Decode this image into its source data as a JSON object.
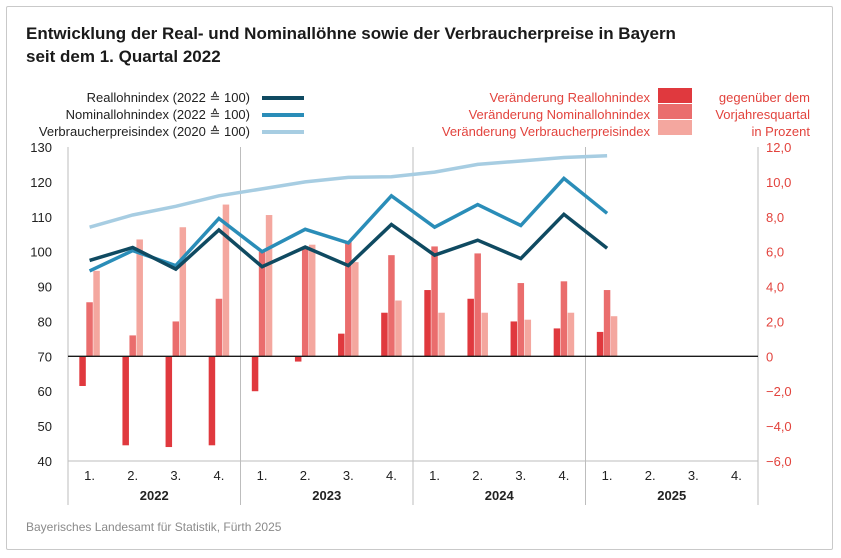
{
  "title_line1": "Entwicklung der Real- und Nominallöhne sowie der Verbraucherpreise in Bayern",
  "title_line2": "seit dem 1. Quartal 2022",
  "source": "Bayerisches Landesamt für Statistik, Fürth 2025",
  "colors": {
    "reallohn_line": "#0f4a61",
    "nominallohn_line": "#2a8db8",
    "vpi_line": "#a7cde2",
    "reallohn_bar": "#e0393e",
    "nominallohn_bar": "#ea6d6d",
    "vpi_bar": "#f4a79f",
    "legend_text_red": "#e2433d",
    "axis_left_text": "#222222",
    "axis_right_text": "#e2433d"
  },
  "chart_data": {
    "type": "bar+line",
    "categories": [
      "1.",
      "2.",
      "3.",
      "4.",
      "1.",
      "2.",
      "3.",
      "4.",
      "1.",
      "2.",
      "3.",
      "4.",
      "1.",
      "2.",
      "3.",
      "4."
    ],
    "years": [
      "2022",
      "2023",
      "2024",
      "2025"
    ],
    "left_axis": {
      "ylim": [
        40,
        130
      ],
      "ticks": [
        "130",
        "120",
        "110",
        "100",
        "90",
        "80",
        "70",
        "60",
        "50",
        "40"
      ]
    },
    "right_axis": {
      "ylim": [
        -6,
        12
      ],
      "ticks": [
        "12,0",
        "10,0",
        "8,0",
        "6,0",
        "4,0",
        "2,0",
        "0",
        "−2,0",
        "−4,0",
        "−6,0"
      ]
    },
    "line_series": [
      {
        "name": "Reallohnindex (2022 ≙ 100)",
        "values": [
          97.5,
          101.2,
          95.0,
          106.2,
          95.7,
          101.3,
          96.0,
          107.8,
          99.0,
          103.3,
          98.0,
          110.7,
          101.0,
          null,
          null,
          null
        ]
      },
      {
        "name": "Nominallohnindex (2022 ≙ 100)",
        "values": [
          94.5,
          100.3,
          96.0,
          109.5,
          100.0,
          106.4,
          102.5,
          116.0,
          107.0,
          113.5,
          107.5,
          121.0,
          111.0,
          null,
          null,
          null
        ]
      },
      {
        "name": "Verbraucherpreisindex (2020 ≙ 100)",
        "values": [
          107.0,
          110.5,
          113.0,
          116.0,
          118.0,
          120.0,
          121.3,
          121.5,
          122.8,
          125.0,
          126.0,
          127.0,
          127.5,
          null,
          null,
          null
        ]
      }
    ],
    "bar_series": [
      {
        "name": "Veränderung Reallohnindex",
        "values": [
          -1.7,
          -5.1,
          -5.2,
          -5.1,
          -2.0,
          -0.3,
          1.3,
          2.5,
          3.8,
          3.3,
          2.0,
          1.6,
          1.4,
          null,
          null,
          null
        ]
      },
      {
        "name": "Veränderung Nominallohnindex",
        "values": [
          3.1,
          1.2,
          2.0,
          3.3,
          6.0,
          6.3,
          6.6,
          5.8,
          6.3,
          5.9,
          4.2,
          4.3,
          3.8,
          null,
          null,
          null
        ]
      },
      {
        "name": "Veränderung Verbraucherpreisindex",
        "values": [
          4.9,
          6.7,
          7.4,
          8.7,
          8.1,
          6.4,
          5.4,
          3.2,
          2.5,
          2.5,
          2.1,
          2.5,
          2.3,
          null,
          null,
          null
        ]
      }
    ],
    "right_legend_note": [
      "gegenüber dem",
      "Vorjahresquartal",
      "in Prozent"
    ],
    "grid": "vertical separators between years",
    "legend_placement": "top"
  }
}
